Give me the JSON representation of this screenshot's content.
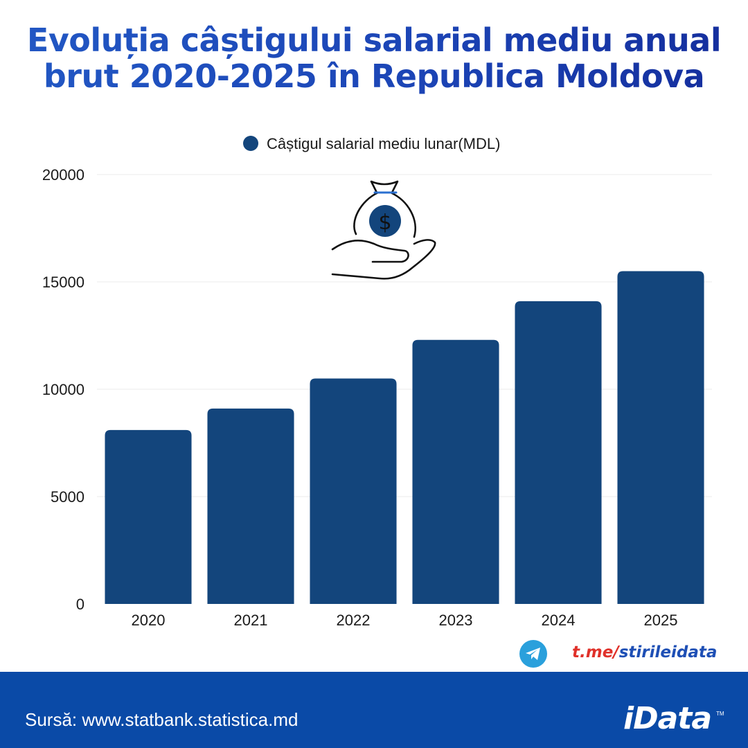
{
  "title": {
    "line1": "Evoluția câștigului salarial mediu anual",
    "line2": "brut 2020-2025 în Republica Moldova"
  },
  "chart_data": {
    "type": "bar",
    "categories": [
      "2020",
      "2021",
      "2022",
      "2023",
      "2024",
      "2025"
    ],
    "series": [
      {
        "name": "Câștigul salarial mediu lunar(MDL)",
        "values": [
          8100,
          9100,
          10500,
          12300,
          14100,
          15500
        ],
        "color": "#13457c"
      }
    ],
    "ylim": [
      0,
      20000
    ],
    "yticks": [
      "0",
      "5000",
      "10000",
      "15000",
      "20000"
    ],
    "grid": true,
    "legend": "top-center",
    "xlabel": "",
    "ylabel": ""
  },
  "illustration": {
    "icon": "money-bag-hand-icon",
    "symbol": "$"
  },
  "telegram": {
    "icon": "telegram-icon",
    "prefix": "t.me/",
    "handle": "stirileidata"
  },
  "footer": {
    "source": "Sursă: www.statbank.statistica.md",
    "brand": "iData",
    "trademark": "TM"
  },
  "colors": {
    "bar": "#13457c",
    "footer": "#0a4aa7",
    "title": "#1c45b6",
    "telegram": "#2aa0dc",
    "link_red": "#e0312a",
    "link_blue": "#1e4fb5"
  }
}
